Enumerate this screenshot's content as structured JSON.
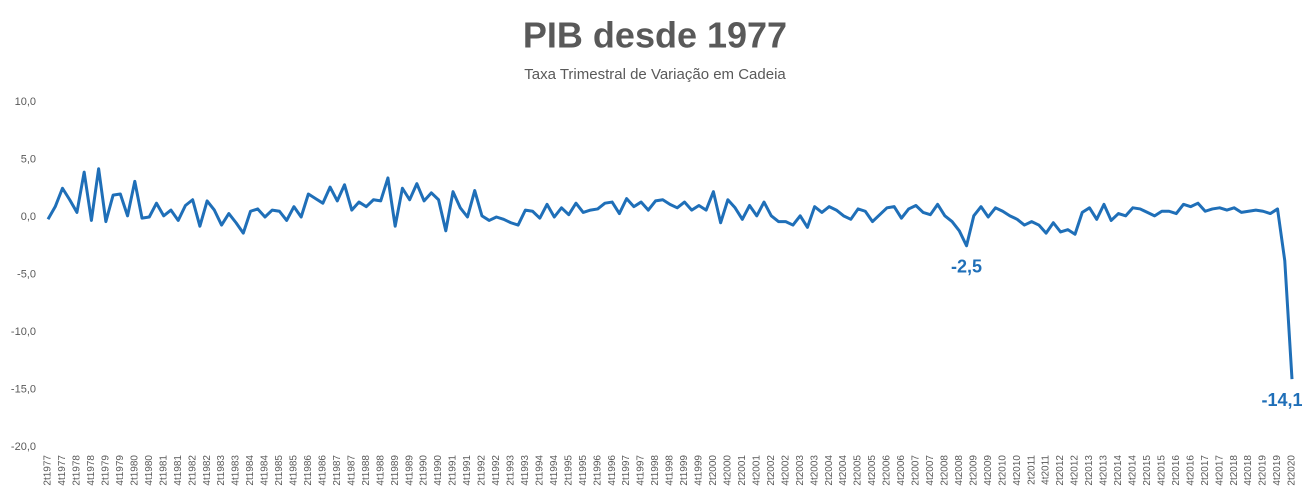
{
  "chart_data": {
    "type": "line",
    "title": "PIB desde 1977",
    "subtitle": "Taxa Trimestral de Variação em Cadeia",
    "color": "#1f6fb8",
    "grid": false,
    "ylim": [
      -20,
      10
    ],
    "yticks": [
      {
        "value": -20,
        "label": "-20,0"
      },
      {
        "value": -15,
        "label": "-15,0"
      },
      {
        "value": -10,
        "label": "-10,0"
      },
      {
        "value": -5,
        "label": "-5,0"
      },
      {
        "value": 0,
        "label": "0,0"
      },
      {
        "value": 5,
        "label": "5,0"
      },
      {
        "value": 10,
        "label": "10,0"
      }
    ],
    "categories": [
      "2t1977",
      null,
      "4t1977",
      null,
      "2t1978",
      null,
      "4t1978",
      null,
      "2t1979",
      null,
      "4t1979",
      null,
      "2t1980",
      null,
      "4t1980",
      null,
      "2t1981",
      null,
      "4t1981",
      null,
      "2t1982",
      null,
      "4t1982",
      null,
      "2t1983",
      null,
      "4t1983",
      null,
      "2t1984",
      null,
      "4t1984",
      null,
      "2t1985",
      null,
      "4t1985",
      null,
      "2t1986",
      null,
      "4t1986",
      null,
      "2t1987",
      null,
      "4t1987",
      null,
      "2t1988",
      null,
      "4t1988",
      null,
      "2t1989",
      null,
      "4t1989",
      null,
      "2t1990",
      null,
      "4t1990",
      null,
      "2t1991",
      null,
      "4t1991",
      null,
      "2t1992",
      null,
      "4t1992",
      null,
      "2t1993",
      null,
      "4t1993",
      null,
      "2t1994",
      null,
      "4t1994",
      null,
      "2t1995",
      null,
      "4t1995",
      null,
      "2t1996",
      null,
      "4t1996",
      null,
      "2t1997",
      null,
      "4t1997",
      null,
      "2t1998",
      null,
      "4t1998",
      null,
      "2t1999",
      null,
      "4t1999",
      null,
      "2t2000",
      null,
      "4t2000",
      null,
      "2t2001",
      null,
      "4t2001",
      null,
      "2t2002",
      null,
      "4t2002",
      null,
      "2t2003",
      null,
      "4t2003",
      null,
      "2t2004",
      null,
      "4t2004",
      null,
      "2t2005",
      null,
      "4t2005",
      null,
      "2t2006",
      null,
      "4t2006",
      null,
      "2t2007",
      null,
      "4t2007",
      null,
      "2t2008",
      null,
      "4t2008",
      null,
      "2t2009",
      null,
      "4t2009",
      null,
      "2t2010",
      null,
      "4t2010",
      null,
      "2t2011",
      null,
      "4t2011",
      null,
      "2t2012",
      null,
      "4t2012",
      null,
      "2t2013",
      null,
      "4t2013",
      null,
      "2t2014",
      null,
      "4t2014",
      null,
      "2t2015",
      null,
      "4t2015",
      null,
      "2t2016",
      null,
      "4t2016",
      null,
      "2t2017",
      null,
      "4t2017",
      null,
      "2t2018",
      null,
      "4t2018",
      null,
      "2t2019",
      null,
      "4t2019",
      null,
      "2t2020"
    ],
    "values": [
      -0.2,
      0.9,
      2.5,
      1.5,
      0.4,
      3.9,
      -0.3,
      4.2,
      -0.4,
      1.9,
      2.0,
      0.1,
      3.1,
      -0.1,
      0.0,
      1.2,
      0.1,
      0.6,
      -0.3,
      1.0,
      1.5,
      -0.8,
      1.4,
      0.6,
      -0.7,
      0.3,
      -0.5,
      -1.4,
      0.5,
      0.7,
      0.0,
      0.6,
      0.5,
      -0.3,
      0.9,
      0.0,
      2.0,
      1.6,
      1.2,
      2.6,
      1.4,
      2.8,
      0.6,
      1.3,
      0.9,
      1.5,
      1.4,
      3.4,
      -0.8,
      2.5,
      1.5,
      2.9,
      1.4,
      2.1,
      1.5,
      -1.2,
      2.2,
      0.8,
      0.0,
      2.3,
      0.1,
      -0.3,
      0.0,
      -0.2,
      -0.5,
      -0.7,
      0.6,
      0.5,
      -0.1,
      1.1,
      0.0,
      0.8,
      0.2,
      1.2,
      0.4,
      0.6,
      0.7,
      1.2,
      1.3,
      0.3,
      1.6,
      0.9,
      1.3,
      0.6,
      1.4,
      1.5,
      1.1,
      0.8,
      1.3,
      0.6,
      1.0,
      0.6,
      2.2,
      -0.5,
      1.5,
      0.8,
      -0.2,
      1.0,
      0.1,
      1.3,
      0.1,
      -0.4,
      -0.4,
      -0.7,
      0.1,
      -0.9,
      0.9,
      0.4,
      0.9,
      0.6,
      0.1,
      -0.2,
      0.7,
      0.5,
      -0.4,
      0.2,
      0.8,
      0.9,
      -0.1,
      0.7,
      1.0,
      0.4,
      0.2,
      1.1,
      0.1,
      -0.4,
      -1.2,
      -2.5,
      0.1,
      0.9,
      0.0,
      0.8,
      0.5,
      0.1,
      -0.2,
      -0.7,
      -0.4,
      -0.7,
      -1.4,
      -0.5,
      -1.3,
      -1.1,
      -1.5,
      0.4,
      0.8,
      -0.2,
      1.1,
      -0.3,
      0.3,
      0.1,
      0.8,
      0.7,
      0.4,
      0.1,
      0.5,
      0.5,
      0.3,
      1.1,
      0.9,
      1.2,
      0.5,
      0.7,
      0.8,
      0.6,
      0.8,
      0.4,
      0.5,
      0.6,
      0.5,
      0.3,
      0.7,
      -3.8,
      -14.1
    ],
    "value_labels": [
      null,
      null,
      null,
      null,
      null,
      null,
      null,
      null,
      null,
      null,
      null,
      null,
      null,
      null,
      null,
      null,
      null,
      null,
      null,
      null,
      null,
      null,
      null,
      null,
      null,
      null,
      null,
      null,
      null,
      null,
      null,
      null,
      null,
      null,
      null,
      null,
      null,
      null,
      null,
      null,
      null,
      null,
      null,
      null,
      null,
      null,
      null,
      null,
      null,
      null,
      null,
      null,
      null,
      null,
      null,
      null,
      null,
      null,
      null,
      null,
      null,
      null,
      null,
      null,
      null,
      null,
      null,
      null,
      null,
      null,
      null,
      null,
      null,
      null,
      null,
      null,
      null,
      null,
      null,
      null,
      null,
      null,
      null,
      null,
      null,
      null,
      null,
      null,
      null,
      null,
      null,
      null,
      null,
      null,
      null,
      null,
      null,
      null,
      null,
      null,
      null,
      null,
      null,
      null,
      null,
      null,
      null,
      null,
      null,
      null,
      null,
      null,
      null,
      null,
      null,
      null,
      null,
      null,
      null,
      null,
      null,
      null,
      null,
      null,
      null,
      null,
      null,
      "-2,5",
      null,
      null,
      null,
      null,
      null,
      null,
      null,
      null,
      null,
      null,
      null,
      null,
      null,
      null,
      null,
      null,
      null,
      null,
      null,
      null,
      null,
      null,
      null,
      null,
      null,
      null,
      null,
      null,
      null,
      null,
      null,
      null,
      null,
      null,
      null,
      null,
      null,
      null,
      null,
      null,
      null,
      null,
      null,
      null,
      "-14,1"
    ]
  }
}
